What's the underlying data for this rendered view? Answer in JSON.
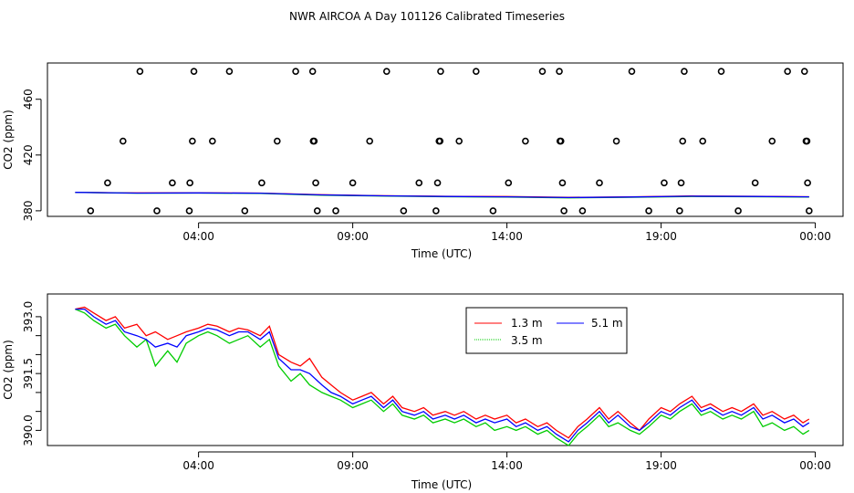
{
  "title": "NWR AIRCOA A  Day 101126  Calibrated Timeseries",
  "chart_data": [
    {
      "type": "scatter",
      "xlabel": "Time (UTC)",
      "ylabel": "CO2 (ppm)",
      "xlim": [
        -0.9,
        24.9
      ],
      "ylim": [
        376,
        486
      ],
      "xticks": [
        {
          "v": 4,
          "label": "04:00"
        },
        {
          "v": 9,
          "label": "09:00"
        },
        {
          "v": 14,
          "label": "14:00"
        },
        {
          "v": 19,
          "label": "19:00"
        },
        {
          "v": 24,
          "label": "00:00"
        }
      ],
      "yticks": [
        {
          "v": 380,
          "label": "380"
        },
        {
          "v": 420,
          "label": "420"
        },
        {
          "v": 460,
          "label": "460"
        }
      ],
      "points": [
        {
          "x": 0.5,
          "y": 380
        },
        {
          "x": 1.05,
          "y": 400
        },
        {
          "x": 1.55,
          "y": 430
        },
        {
          "x": 2.1,
          "y": 480
        },
        {
          "x": 2.65,
          "y": 380
        },
        {
          "x": 3.15,
          "y": 400
        },
        {
          "x": 3.7,
          "y": 380
        },
        {
          "x": 3.72,
          "y": 400
        },
        {
          "x": 3.8,
          "y": 430
        },
        {
          "x": 3.85,
          "y": 480
        },
        {
          "x": 4.45,
          "y": 430
        },
        {
          "x": 5.0,
          "y": 480
        },
        {
          "x": 5.5,
          "y": 380
        },
        {
          "x": 6.05,
          "y": 400
        },
        {
          "x": 6.55,
          "y": 430
        },
        {
          "x": 7.15,
          "y": 480
        },
        {
          "x": 7.7,
          "y": 480
        },
        {
          "x": 7.72,
          "y": 430
        },
        {
          "x": 7.75,
          "y": 430
        },
        {
          "x": 7.8,
          "y": 400
        },
        {
          "x": 7.85,
          "y": 380
        },
        {
          "x": 8.45,
          "y": 380
        },
        {
          "x": 9.0,
          "y": 400
        },
        {
          "x": 9.55,
          "y": 430
        },
        {
          "x": 10.1,
          "y": 480
        },
        {
          "x": 10.65,
          "y": 380
        },
        {
          "x": 11.15,
          "y": 400
        },
        {
          "x": 11.7,
          "y": 380
        },
        {
          "x": 11.75,
          "y": 400
        },
        {
          "x": 11.8,
          "y": 430
        },
        {
          "x": 11.83,
          "y": 430
        },
        {
          "x": 11.85,
          "y": 480
        },
        {
          "x": 12.45,
          "y": 430
        },
        {
          "x": 13.0,
          "y": 480
        },
        {
          "x": 13.55,
          "y": 380
        },
        {
          "x": 14.05,
          "y": 400
        },
        {
          "x": 14.6,
          "y": 430
        },
        {
          "x": 15.15,
          "y": 480
        },
        {
          "x": 15.7,
          "y": 480
        },
        {
          "x": 15.72,
          "y": 430
        },
        {
          "x": 15.75,
          "y": 430
        },
        {
          "x": 15.8,
          "y": 400
        },
        {
          "x": 15.85,
          "y": 380
        },
        {
          "x": 16.45,
          "y": 380
        },
        {
          "x": 17.0,
          "y": 400
        },
        {
          "x": 17.55,
          "y": 430
        },
        {
          "x": 18.05,
          "y": 480
        },
        {
          "x": 18.6,
          "y": 380
        },
        {
          "x": 19.1,
          "y": 400
        },
        {
          "x": 19.6,
          "y": 380
        },
        {
          "x": 19.65,
          "y": 400
        },
        {
          "x": 19.7,
          "y": 430
        },
        {
          "x": 19.75,
          "y": 480
        },
        {
          "x": 20.35,
          "y": 430
        },
        {
          "x": 20.95,
          "y": 480
        },
        {
          "x": 21.5,
          "y": 380
        },
        {
          "x": 22.05,
          "y": 400
        },
        {
          "x": 22.6,
          "y": 430
        },
        {
          "x": 23.1,
          "y": 480
        },
        {
          "x": 23.65,
          "y": 480
        },
        {
          "x": 23.7,
          "y": 430
        },
        {
          "x": 23.73,
          "y": 430
        },
        {
          "x": 23.75,
          "y": 400
        },
        {
          "x": 23.8,
          "y": 380
        }
      ],
      "series": [
        {
          "name": "1.3 m",
          "color": "#ff0000",
          "x": [
            0,
            2,
            4,
            6,
            8,
            10,
            12,
            14,
            16,
            18,
            20,
            22,
            23.8
          ],
          "y": [
            393.2,
            392.8,
            392.9,
            392.7,
            391.5,
            390.8,
            390.4,
            390.2,
            389.6,
            390.0,
            390.6,
            390.4,
            390.1
          ]
        },
        {
          "name": "3.5 m",
          "color": "#00cc00",
          "x": [
            0,
            2,
            4,
            6,
            8,
            10,
            12,
            14,
            16,
            18,
            20,
            22,
            23.8
          ],
          "y": [
            393.2,
            392.6,
            392.7,
            392.5,
            391.2,
            390.6,
            390.1,
            389.9,
            389.3,
            389.7,
            390.3,
            390.1,
            389.8
          ]
        },
        {
          "name": "5.1 m",
          "color": "#0000ff",
          "x": [
            0,
            2,
            4,
            6,
            8,
            10,
            12,
            14,
            16,
            18,
            20,
            22,
            23.8
          ],
          "y": [
            393.2,
            392.7,
            392.8,
            392.6,
            391.4,
            390.7,
            390.3,
            390.0,
            389.5,
            389.9,
            390.5,
            390.3,
            390.0
          ]
        }
      ]
    },
    {
      "type": "line",
      "xlabel": "Time (UTC)",
      "ylabel": "CO2 (ppm)",
      "xlim": [
        -0.9,
        24.9
      ],
      "ylim": [
        389.6,
        393.6
      ],
      "xticks": [
        {
          "v": 4,
          "label": "04:00"
        },
        {
          "v": 9,
          "label": "09:00"
        },
        {
          "v": 14,
          "label": "14:00"
        },
        {
          "v": 19,
          "label": "19:00"
        },
        {
          "v": 24,
          "label": "00:00"
        }
      ],
      "yticks": [
        {
          "v": 390.0,
          "label": "390.0"
        },
        {
          "v": 390.5,
          "label": ""
        },
        {
          "v": 391.0,
          "label": ""
        },
        {
          "v": 391.5,
          "label": "391.5"
        },
        {
          "v": 392.0,
          "label": ""
        },
        {
          "v": 392.5,
          "label": ""
        },
        {
          "v": 393.0,
          "label": "393.0"
        }
      ],
      "legend": {
        "placement": "top-center",
        "labels": [
          "1.3 m",
          "5.1 m",
          "3.5 m"
        ]
      },
      "series": [
        {
          "name": "1.3 m",
          "color": "#ff0000",
          "x": [
            0,
            0.3,
            0.6,
            1,
            1.3,
            1.6,
            2,
            2.3,
            2.6,
            3,
            3.3,
            3.6,
            4,
            4.3,
            4.6,
            5,
            5.3,
            5.6,
            6,
            6.3,
            6.6,
            7,
            7.3,
            7.6,
            8,
            8.3,
            8.6,
            9,
            9.3,
            9.6,
            10,
            10.3,
            10.6,
            11,
            11.3,
            11.6,
            12,
            12.3,
            12.6,
            13,
            13.3,
            13.6,
            14,
            14.3,
            14.6,
            15,
            15.3,
            15.6,
            16,
            16.3,
            16.6,
            17,
            17.3,
            17.6,
            18,
            18.3,
            18.6,
            19,
            19.3,
            19.6,
            20,
            20.3,
            20.6,
            21,
            21.3,
            21.6,
            22,
            22.3,
            22.6,
            23,
            23.3,
            23.6,
            23.8
          ],
          "y": [
            393.2,
            393.25,
            393.1,
            392.9,
            393.0,
            392.7,
            392.8,
            392.5,
            392.6,
            392.4,
            392.5,
            392.6,
            392.7,
            392.8,
            392.75,
            392.6,
            392.7,
            392.65,
            392.5,
            392.75,
            392.0,
            391.8,
            391.7,
            391.9,
            391.4,
            391.2,
            391.0,
            390.8,
            390.9,
            391.0,
            390.7,
            390.9,
            390.6,
            390.5,
            390.6,
            390.4,
            390.5,
            390.4,
            390.5,
            390.3,
            390.4,
            390.3,
            390.4,
            390.2,
            390.3,
            390.1,
            390.2,
            390.0,
            389.8,
            390.1,
            390.3,
            390.6,
            390.3,
            390.5,
            390.2,
            390.0,
            390.3,
            390.6,
            390.5,
            390.7,
            390.9,
            390.6,
            390.7,
            390.5,
            390.6,
            390.5,
            390.7,
            390.4,
            390.5,
            390.3,
            390.4,
            390.2,
            390.3
          ]
        },
        {
          "name": "3.5 m",
          "color": "#00cc00",
          "x": [
            0,
            0.3,
            0.6,
            1,
            1.3,
            1.6,
            2,
            2.3,
            2.6,
            3,
            3.3,
            3.6,
            4,
            4.3,
            4.6,
            5,
            5.3,
            5.6,
            6,
            6.3,
            6.6,
            7,
            7.3,
            7.6,
            8,
            8.3,
            8.6,
            9,
            9.3,
            9.6,
            10,
            10.3,
            10.6,
            11,
            11.3,
            11.6,
            12,
            12.3,
            12.6,
            13,
            13.3,
            13.6,
            14,
            14.3,
            14.6,
            15,
            15.3,
            15.6,
            16,
            16.3,
            16.6,
            17,
            17.3,
            17.6,
            18,
            18.3,
            18.6,
            19,
            19.3,
            19.6,
            20,
            20.3,
            20.6,
            21,
            21.3,
            21.6,
            22,
            22.3,
            22.6,
            23,
            23.3,
            23.6,
            23.8
          ],
          "y": [
            393.2,
            393.1,
            392.9,
            392.7,
            392.8,
            392.5,
            392.2,
            392.4,
            391.7,
            392.1,
            391.8,
            392.3,
            392.5,
            392.6,
            392.5,
            392.3,
            392.4,
            392.5,
            392.2,
            392.4,
            391.7,
            391.3,
            391.5,
            391.2,
            391.0,
            390.9,
            390.8,
            390.6,
            390.7,
            390.8,
            390.5,
            390.7,
            390.4,
            390.3,
            390.4,
            390.2,
            390.3,
            390.2,
            390.3,
            390.1,
            390.2,
            390.0,
            390.1,
            390.0,
            390.1,
            389.9,
            390.0,
            389.8,
            389.6,
            389.9,
            390.1,
            390.4,
            390.1,
            390.2,
            390.0,
            389.9,
            390.1,
            390.4,
            390.3,
            390.5,
            390.7,
            390.4,
            390.5,
            390.3,
            390.4,
            390.3,
            390.5,
            390.1,
            390.2,
            390.0,
            390.1,
            389.9,
            390.0
          ]
        },
        {
          "name": "5.1 m",
          "color": "#0000ff",
          "x": [
            0,
            0.3,
            0.6,
            1,
            1.3,
            1.6,
            2,
            2.3,
            2.6,
            3,
            3.3,
            3.6,
            4,
            4.3,
            4.6,
            5,
            5.3,
            5.6,
            6,
            6.3,
            6.6,
            7,
            7.3,
            7.6,
            8,
            8.3,
            8.6,
            9,
            9.3,
            9.6,
            10,
            10.3,
            10.6,
            11,
            11.3,
            11.6,
            12,
            12.3,
            12.6,
            13,
            13.3,
            13.6,
            14,
            14.3,
            14.6,
            15,
            15.3,
            15.6,
            16,
            16.3,
            16.6,
            17,
            17.3,
            17.6,
            18,
            18.3,
            18.6,
            19,
            19.3,
            19.6,
            20,
            20.3,
            20.6,
            21,
            21.3,
            21.6,
            22,
            22.3,
            22.6,
            23,
            23.3,
            23.6,
            23.8
          ],
          "y": [
            393.2,
            393.2,
            393.0,
            392.8,
            392.9,
            392.6,
            392.5,
            392.4,
            392.2,
            392.3,
            392.2,
            392.5,
            392.6,
            392.7,
            392.65,
            392.5,
            392.6,
            392.6,
            392.4,
            392.6,
            391.9,
            391.6,
            391.6,
            391.5,
            391.2,
            391.0,
            390.9,
            390.7,
            390.8,
            390.9,
            390.6,
            390.8,
            390.5,
            390.4,
            390.5,
            390.3,
            390.4,
            390.3,
            390.4,
            390.2,
            390.3,
            390.2,
            390.3,
            390.1,
            390.2,
            390.0,
            390.1,
            389.9,
            389.7,
            390.0,
            390.2,
            390.5,
            390.2,
            390.4,
            390.1,
            390.0,
            390.2,
            390.5,
            390.4,
            390.6,
            390.8,
            390.5,
            390.6,
            390.4,
            390.5,
            390.4,
            390.6,
            390.3,
            390.4,
            390.2,
            390.3,
            390.1,
            390.2
          ]
        }
      ]
    }
  ]
}
